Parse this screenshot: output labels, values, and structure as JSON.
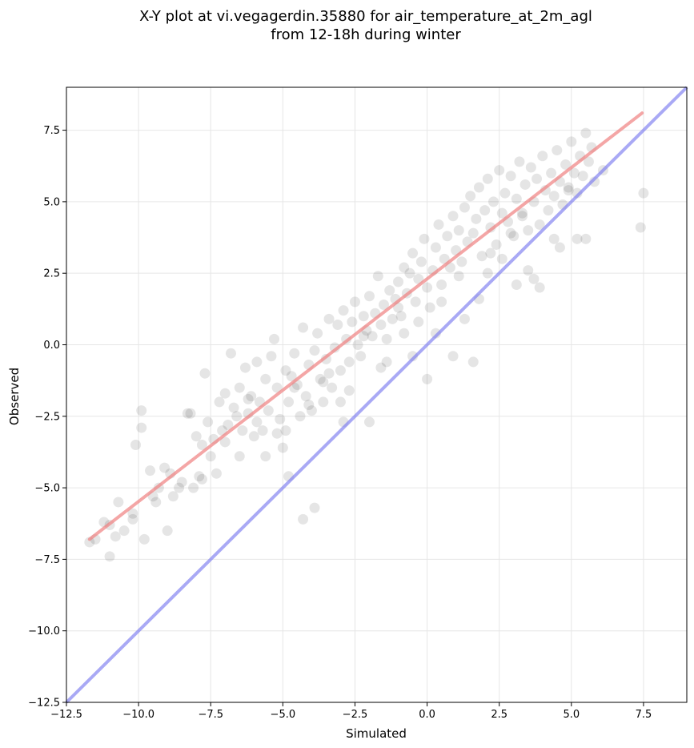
{
  "chart_data": {
    "type": "scatter",
    "title": "X-Y plot at vi.vegagerdin.35880 for air_temperature_at_2m_agl",
    "subtitle": "from 12-18h during winter",
    "xlabel": "Simulated",
    "ylabel": "Observed",
    "xlim": [
      -12.5,
      9.0
    ],
    "ylim": [
      -12.5,
      9.0
    ],
    "x_ticks": [
      -12.5,
      -10.0,
      -7.5,
      -5.0,
      -2.5,
      0.0,
      2.5,
      5.0,
      7.5
    ],
    "x_tick_labels": [
      "−12.5",
      "−10.0",
      "−7.5",
      "−5.0",
      "−2.5",
      "0.0",
      "2.5",
      "5.0",
      "7.5"
    ],
    "y_ticks": [
      -12.5,
      -10.0,
      -7.5,
      -5.0,
      -2.5,
      0.0,
      2.5,
      5.0,
      7.5
    ],
    "y_tick_labels": [
      "−12.5",
      "−10.0",
      "−7.5",
      "−5.0",
      "−2.5",
      "0.0",
      "2.5",
      "5.0",
      "7.5"
    ],
    "grid": true,
    "colors": {
      "points": "#000000",
      "fit_line": "#f08080",
      "identity_line": "#7b7bf0",
      "grid": "#e6e6e6"
    },
    "fit_line": {
      "x": [
        -11.7,
        7.45
      ],
      "y": [
        -6.8,
        8.1
      ]
    },
    "identity_line": {
      "x": [
        -12.5,
        9.0
      ],
      "y": [
        -12.5,
        9.0
      ]
    },
    "points": {
      "x": [
        -11.7,
        -11.5,
        -11.2,
        -11.0,
        -10.8,
        -10.7,
        -10.5,
        -10.2,
        -10.1,
        -9.9,
        -9.8,
        -9.6,
        -9.5,
        -9.3,
        -9.1,
        -9.0,
        -8.8,
        -8.6,
        -8.5,
        -8.3,
        -8.1,
        -7.9,
        -7.8,
        -7.7,
        -7.6,
        -7.5,
        -7.4,
        -7.3,
        -7.2,
        -7.1,
        -7.0,
        -6.9,
        -6.8,
        -6.7,
        -6.6,
        -6.5,
        -6.4,
        -6.3,
        -6.2,
        -6.1,
        -6.0,
        -5.9,
        -5.8,
        -5.7,
        -5.6,
        -5.5,
        -5.4,
        -5.3,
        -5.2,
        -5.1,
        -5.0,
        -4.9,
        -4.8,
        -4.7,
        -4.6,
        -4.5,
        -4.4,
        -4.3,
        -4.2,
        -4.1,
        -4.0,
        -3.9,
        -3.8,
        -3.7,
        -3.6,
        -3.5,
        -3.4,
        -3.3,
        -3.2,
        -3.1,
        -3.0,
        -2.9,
        -2.8,
        -2.7,
        -2.6,
        -2.5,
        -2.4,
        -2.3,
        -2.2,
        -2.1,
        -2.0,
        -1.9,
        -1.8,
        -1.7,
        -1.6,
        -1.5,
        -1.4,
        -1.3,
        -1.2,
        -1.1,
        -1.0,
        -0.9,
        -0.8,
        -0.7,
        -0.6,
        -0.5,
        -0.4,
        -0.3,
        -0.2,
        -0.1,
        0.0,
        0.1,
        0.2,
        0.3,
        0.4,
        0.5,
        0.6,
        0.7,
        0.8,
        0.9,
        1.0,
        1.1,
        1.2,
        1.3,
        1.4,
        1.5,
        1.6,
        1.7,
        1.8,
        1.9,
        2.0,
        2.1,
        2.2,
        2.3,
        2.4,
        2.5,
        2.6,
        2.7,
        2.8,
        2.9,
        3.0,
        3.1,
        3.2,
        3.3,
        3.4,
        3.5,
        3.6,
        3.7,
        3.8,
        3.9,
        4.0,
        4.1,
        4.2,
        4.3,
        4.4,
        4.5,
        4.6,
        4.7,
        4.8,
        4.9,
        5.0,
        5.1,
        5.2,
        5.3,
        5.4,
        5.5,
        5.6,
        5.7,
        5.8,
        6.1,
        7.4,
        7.5,
        -11.0,
        -10.2,
        -9.4,
        -8.9,
        -8.0,
        -7.8,
        -6.5,
        -5.9,
        -5.2,
        -4.8,
        -4.3,
        -3.9,
        -3.6,
        -3.0,
        -2.7,
        -2.0,
        -1.4,
        -0.8,
        -0.5,
        0.0,
        0.3,
        0.9,
        1.3,
        1.6,
        2.1,
        2.6,
        3.1,
        3.5,
        3.9,
        4.6,
        5.2,
        -9.9,
        -8.2,
        -7.0,
        -6.2,
        -5.6,
        -4.9,
        -4.6,
        -4.1,
        -3.4,
        -2.9,
        -2.2,
        -1.6,
        -1.0,
        -0.3,
        0.5,
        1.1,
        1.8,
        2.2,
        2.9,
        3.3,
        3.7,
        4.4,
        4.9,
        5.5
      ],
      "y": [
        -6.9,
        -6.8,
        -6.2,
        -7.4,
        -6.7,
        -5.5,
        -6.5,
        -5.9,
        -3.5,
        -2.3,
        -6.8,
        -4.4,
        -5.3,
        -5.0,
        -4.3,
        -6.5,
        -5.3,
        -5.0,
        -4.8,
        -2.4,
        -5.0,
        -4.6,
        -3.5,
        -1.0,
        -2.7,
        -3.9,
        -3.3,
        -4.5,
        -2.0,
        -3.0,
        -1.7,
        -2.8,
        -0.3,
        -2.2,
        -2.5,
        -1.5,
        -3.0,
        -0.8,
        -2.4,
        -1.8,
        -3.2,
        -0.6,
        -2.0,
        -3.0,
        -1.2,
        -2.3,
        -0.4,
        0.2,
        -1.5,
        -2.6,
        -3.6,
        -0.9,
        -2.0,
        -1.1,
        -0.3,
        -1.4,
        -2.5,
        0.6,
        -1.8,
        -0.7,
        -2.3,
        -0.2,
        0.4,
        -1.2,
        -2.0,
        -0.5,
        0.9,
        -1.5,
        -0.1,
        0.7,
        -0.9,
        1.2,
        0.2,
        -0.6,
        0.8,
        1.5,
        0.0,
        -0.4,
        1.0,
        0.5,
        1.7,
        0.3,
        1.1,
        2.4,
        0.7,
        1.4,
        0.2,
        1.9,
        0.9,
        1.6,
        2.2,
        1.0,
        2.7,
        1.8,
        2.5,
        3.2,
        1.5,
        2.3,
        2.9,
        3.7,
        2.0,
        1.3,
        2.6,
        3.4,
        4.2,
        2.1,
        3.0,
        3.8,
        2.7,
        4.5,
        3.3,
        4.0,
        2.9,
        4.8,
        3.6,
        5.2,
        3.9,
        4.4,
        5.5,
        3.1,
        4.7,
        5.8,
        4.1,
        5.0,
        3.5,
        6.1,
        4.6,
        5.3,
        4.3,
        5.9,
        3.8,
        5.1,
        6.4,
        4.5,
        5.6,
        4.0,
        6.2,
        5.0,
        5.8,
        4.2,
        6.6,
        5.4,
        4.7,
        6.0,
        5.2,
        6.8,
        5.7,
        4.9,
        6.3,
        5.5,
        7.1,
        6.0,
        5.3,
        6.6,
        5.9,
        7.4,
        6.4,
        6.9,
        5.7,
        6.1,
        4.1,
        5.3,
        -6.3,
        -6.1,
        -5.5,
        -4.5,
        -3.2,
        -4.7,
        -3.9,
        -2.7,
        -3.1,
        -4.6,
        -6.1,
        -5.7,
        -1.3,
        -2.0,
        -1.6,
        -2.7,
        -0.6,
        0.4,
        -0.4,
        -1.2,
        0.4,
        -0.4,
        0.9,
        -0.6,
        2.5,
        3.0,
        2.1,
        2.6,
        2.0,
        3.4,
        3.7,
        -2.9,
        -2.4,
        -3.4,
        -1.9,
        -3.9,
        -3.0,
        -1.5,
        -2.1,
        -1.0,
        -2.7,
        0.3,
        -0.8,
        1.3,
        0.8,
        1.5,
        2.4,
        1.6,
        3.2,
        3.9,
        4.6,
        2.3,
        3.7,
        5.4,
        3.7
      ]
    }
  }
}
